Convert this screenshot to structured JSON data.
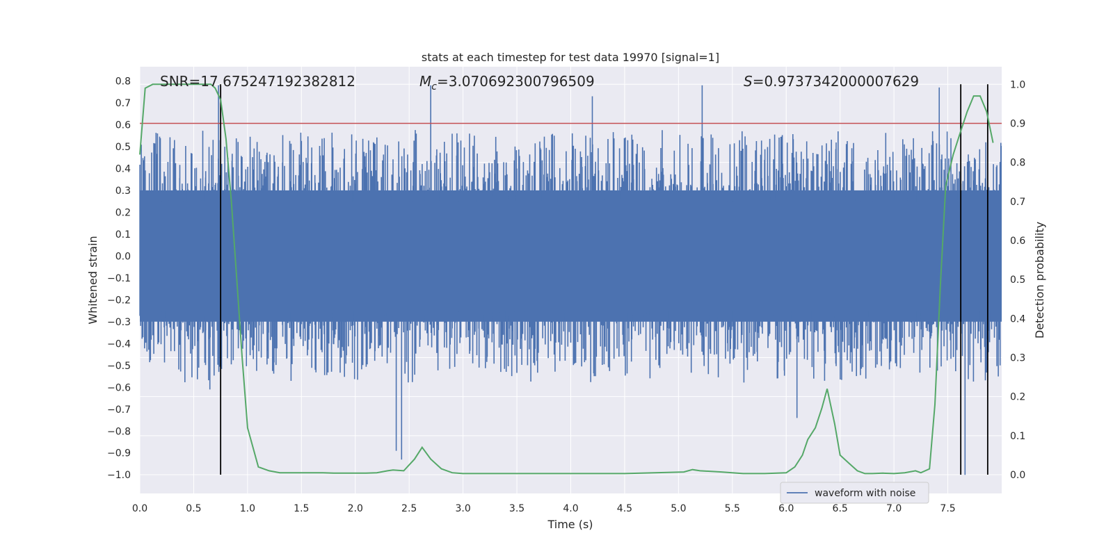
{
  "chart_data": {
    "type": "line",
    "title": "stats at each timestep for test data 19970 [signal=1]",
    "xlabel": "Time (s)",
    "ylabel": "Whitened strain",
    "y2label": "Detection probability",
    "xlim": [
      0.0,
      8.0
    ],
    "ylim": [
      -1.085,
      0.865
    ],
    "y2lim": [
      -0.048,
      1.045
    ],
    "xticks": [
      "0.0",
      "0.5",
      "1.0",
      "1.5",
      "2.0",
      "2.5",
      "3.0",
      "3.5",
      "4.0",
      "4.5",
      "5.0",
      "5.5",
      "6.0",
      "6.5",
      "7.0",
      "7.5"
    ],
    "yticks": [
      "0.8",
      "0.7",
      "0.6",
      "0.5",
      "0.4",
      "0.3",
      "0.2",
      "0.1",
      "0.0",
      "−0.1",
      "−0.2",
      "−0.3",
      "−0.4",
      "−0.5",
      "−0.6",
      "−0.7",
      "−0.8",
      "−0.9",
      "−1.0"
    ],
    "y2ticks": [
      "1.0",
      "0.9",
      "0.8",
      "0.7",
      "0.6",
      "0.5",
      "0.4",
      "0.3",
      "0.2",
      "0.1",
      "0.0"
    ],
    "annotations": {
      "snr": "SNR=17.675247192382812",
      "mc_symbol": "M",
      "mc_sub": "c",
      "mc_value": "=3.070692300796509",
      "s_symbol": "S",
      "s_value": "=0.9737342000007629"
    },
    "legend": {
      "label": "waveform with noise",
      "location": "lower-right"
    },
    "threshold": {
      "value": 0.9,
      "axis": "right",
      "color": "#c44e52"
    },
    "vertical_markers": [
      0.75,
      7.62,
      7.87
    ],
    "waveform": {
      "name": "waveform with noise",
      "color": "#4c72b0",
      "x_range": [
        0.0,
        8.0
      ],
      "band_amplitude": 0.3,
      "spike_amplitude_range": [
        0.25,
        0.78
      ],
      "notable_peaks": [
        {
          "x": 0.73,
          "y": 0.78
        },
        {
          "x": 2.7,
          "y": 0.78
        },
        {
          "x": 5.22,
          "y": 0.78
        },
        {
          "x": 4.2,
          "y": 0.73
        },
        {
          "x": 7.42,
          "y": 0.77
        },
        {
          "x": 2.43,
          "y": -0.93
        },
        {
          "x": 2.38,
          "y": -0.89
        },
        {
          "x": 7.66,
          "y": -1.0
        },
        {
          "x": 6.1,
          "y": -0.74
        },
        {
          "x": 0.65,
          "y": -0.61
        }
      ]
    },
    "probability": {
      "name": "detection probability",
      "color": "#55a868",
      "x": [
        0.0,
        0.05,
        0.12,
        0.2,
        0.3,
        0.4,
        0.5,
        0.6,
        0.66,
        0.7,
        0.75,
        0.8,
        0.85,
        0.9,
        0.95,
        1.0,
        1.1,
        1.2,
        1.3,
        1.4,
        1.5,
        1.6,
        1.7,
        1.8,
        1.9,
        2.0,
        2.1,
        2.2,
        2.3,
        2.35,
        2.45,
        2.55,
        2.62,
        2.7,
        2.8,
        2.9,
        3.0,
        3.5,
        4.0,
        4.5,
        4.9,
        5.05,
        5.13,
        5.2,
        5.4,
        5.6,
        5.8,
        6.0,
        6.08,
        6.15,
        6.2,
        6.27,
        6.33,
        6.38,
        6.45,
        6.5,
        6.58,
        6.66,
        6.73,
        6.8,
        6.9,
        7.0,
        7.1,
        7.2,
        7.25,
        7.33,
        7.38,
        7.43,
        7.48,
        7.55,
        7.62,
        7.68,
        7.74,
        7.8,
        7.86,
        7.92
      ],
      "y": [
        0.82,
        0.99,
        1.0,
        1.0,
        1.0,
        1.0,
        1.0,
        1.0,
        1.0,
        0.99,
        0.96,
        0.86,
        0.7,
        0.5,
        0.3,
        0.12,
        0.02,
        0.01,
        0.005,
        0.005,
        0.005,
        0.005,
        0.005,
        0.004,
        0.004,
        0.004,
        0.004,
        0.005,
        0.01,
        0.012,
        0.01,
        0.04,
        0.07,
        0.04,
        0.015,
        0.005,
        0.003,
        0.003,
        0.003,
        0.003,
        0.006,
        0.007,
        0.013,
        0.01,
        0.007,
        0.003,
        0.003,
        0.005,
        0.02,
        0.05,
        0.09,
        0.12,
        0.17,
        0.22,
        0.13,
        0.05,
        0.03,
        0.01,
        0.003,
        0.003,
        0.004,
        0.003,
        0.005,
        0.01,
        0.005,
        0.015,
        0.18,
        0.48,
        0.74,
        0.82,
        0.88,
        0.93,
        0.97,
        0.97,
        0.93,
        0.85
      ]
    }
  }
}
